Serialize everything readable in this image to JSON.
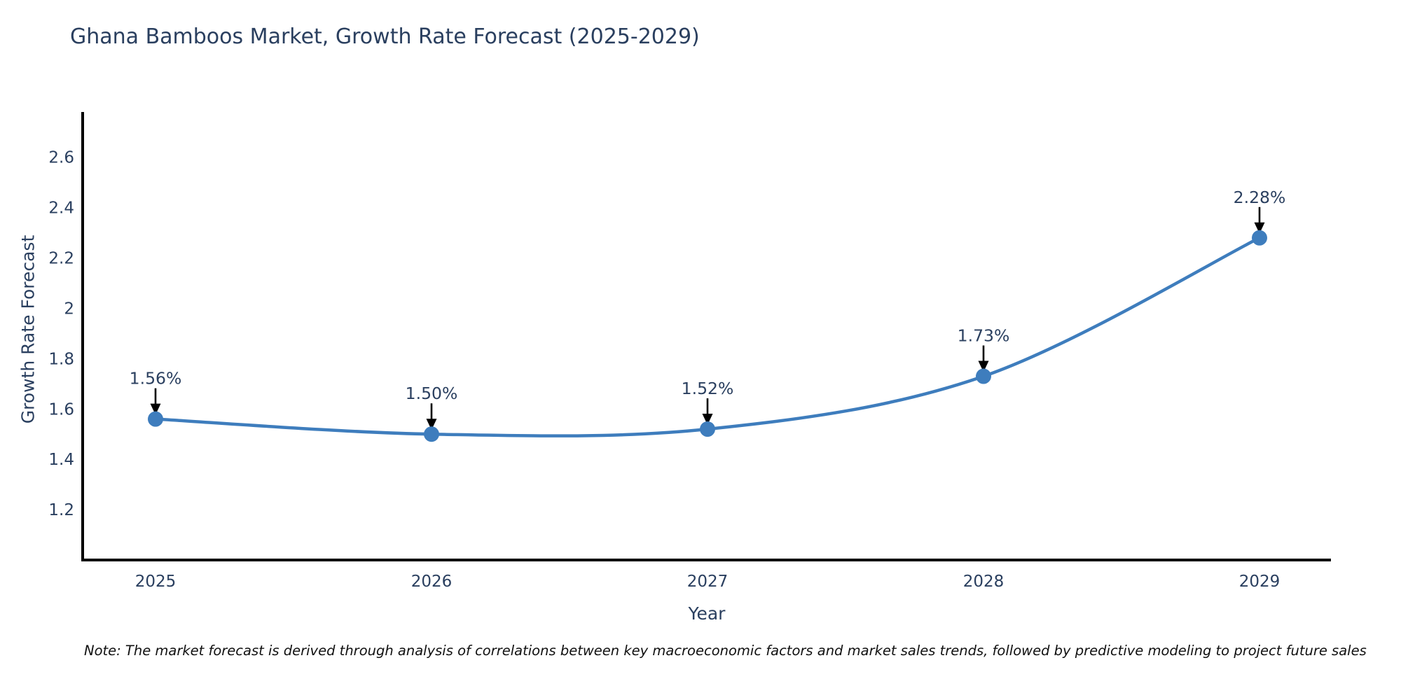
{
  "header": {
    "title": "Ghana Bamboos Market, Growth Rate Forecast (2025-2029)"
  },
  "chart_data": {
    "type": "line",
    "title": "Ghana Bamboos Market, Growth Rate Forecast (2025-2029)",
    "xlabel": "Year",
    "ylabel": "Growth Rate Forecast",
    "x": [
      "2025",
      "2026",
      "2027",
      "2028",
      "2029"
    ],
    "series": [
      {
        "name": "Growth Rate Forecast",
        "values": [
          1.56,
          1.5,
          1.52,
          1.73,
          2.28
        ]
      }
    ],
    "point_labels": [
      "1.56%",
      "1.50%",
      "1.52%",
      "1.73%",
      "2.28%"
    ],
    "ylim": [
      1.0,
      2.78
    ],
    "yticks": [
      1.2,
      1.4,
      1.6,
      1.8,
      2,
      2.2,
      2.4,
      2.6
    ],
    "ytick_labels": [
      "1.2",
      "1.4",
      "1.6",
      "1.8",
      "2",
      "2.2",
      "2.4",
      "2.6"
    ],
    "grid": false,
    "legend_position": "none",
    "line_shape": "spline",
    "colors": {
      "line": "#3e7dbd",
      "marker": "#3e7dbd",
      "annotation_arrow": "#000000",
      "text": "#2a3f5f",
      "axis_line": "#000000"
    }
  },
  "footer": {
    "note": "Note: The market forecast is derived through analysis of correlations between key macroeconomic factors and market sales trends, followed by predictive modeling to project future sales"
  }
}
